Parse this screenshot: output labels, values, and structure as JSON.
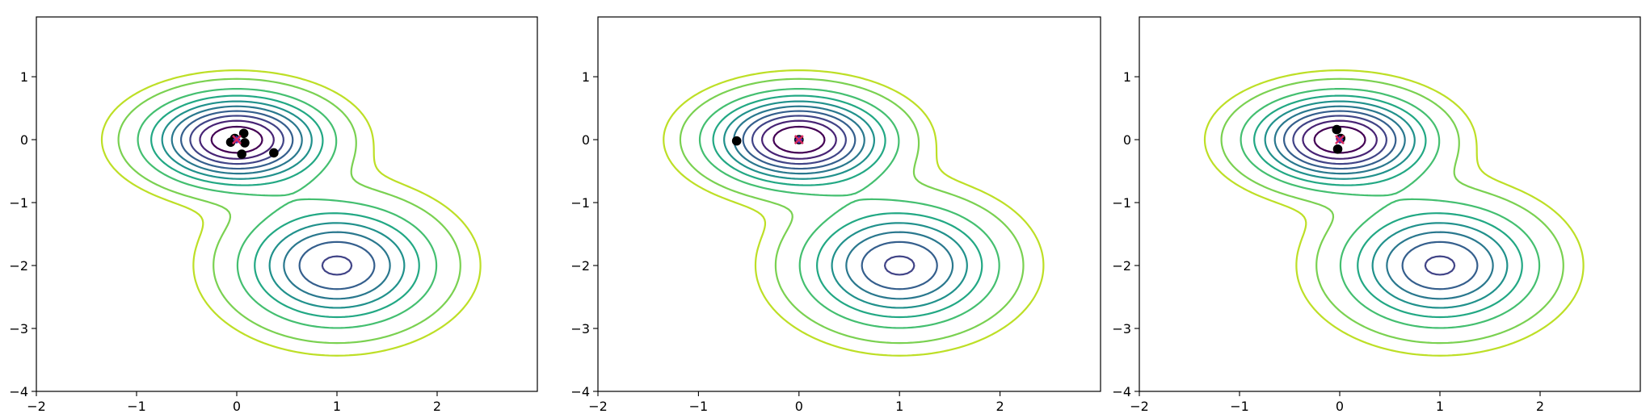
{
  "chart_data": [
    {
      "type": "contour",
      "title": "",
      "xlabel": "",
      "ylabel": "",
      "xlim": [
        -2,
        3
      ],
      "ylim": [
        -4,
        1.95
      ],
      "xticks": [
        -2,
        -1,
        0,
        1,
        2
      ],
      "yticks": [
        -4,
        -3,
        -2,
        -1,
        0,
        1
      ],
      "xtick_labels": [
        "−2",
        "−1",
        "0",
        "1",
        "2"
      ],
      "ytick_labels": [
        "−4",
        "−3",
        "−2",
        "−1",
        "0",
        "1"
      ],
      "grid": false,
      "contour_levels": [
        0.05,
        0.1,
        0.2,
        0.3,
        0.4,
        0.5,
        0.6,
        0.7,
        0.8,
        0.9
      ],
      "contour_colors": [
        "#bddf26",
        "#7ad151",
        "#44bf70",
        "#22a884",
        "#21918c",
        "#2a788e",
        "#355f8d",
        "#414487",
        "#482475",
        "#440154"
      ],
      "series": [
        {
          "marker": "samples",
          "color": "#000000",
          "x": [
            0.07,
            -0.06,
            0.08,
            0.05,
            0.37,
            -0.02
          ],
          "y": [
            0.1,
            -0.04,
            -0.05,
            -0.23,
            -0.21,
            0.02
          ]
        },
        {
          "marker": "mean",
          "color": "#d62a63",
          "x": [
            0.0
          ],
          "y": [
            0.0
          ]
        }
      ]
    },
    {
      "type": "contour",
      "title": "",
      "xlabel": "",
      "ylabel": "",
      "xlim": [
        -2,
        3
      ],
      "ylim": [
        -4,
        1.95
      ],
      "xticks": [
        -2,
        -1,
        0,
        1,
        2
      ],
      "yticks": [
        -4,
        -3,
        -2,
        -1,
        0,
        1
      ],
      "xtick_labels": [
        "−2",
        "−1",
        "0",
        "1",
        "2"
      ],
      "ytick_labels": [
        "−4",
        "−3",
        "−2",
        "−1",
        "0",
        "1"
      ],
      "grid": false,
      "contour_levels": [
        0.05,
        0.1,
        0.2,
        0.3,
        0.4,
        0.5,
        0.6,
        0.7,
        0.8,
        0.9
      ],
      "contour_colors": [
        "#bddf26",
        "#7ad151",
        "#44bf70",
        "#22a884",
        "#21918c",
        "#2a788e",
        "#355f8d",
        "#414487",
        "#482475",
        "#440154"
      ],
      "series": [
        {
          "marker": "samples",
          "color": "#000000",
          "x": [
            -0.62,
            0.0
          ],
          "y": [
            -0.02,
            0.0
          ]
        },
        {
          "marker": "mean",
          "color": "#d62a63",
          "x": [
            0.0
          ],
          "y": [
            0.0
          ]
        }
      ]
    },
    {
      "type": "contour",
      "title": "",
      "xlabel": "",
      "ylabel": "",
      "xlim": [
        -2,
        3
      ],
      "ylim": [
        -4,
        1.95
      ],
      "xticks": [
        -2,
        -1,
        0,
        1,
        2
      ],
      "yticks": [
        -4,
        -3,
        -2,
        -1,
        0,
        1
      ],
      "xtick_labels": [
        "−2",
        "−1",
        "0",
        "1",
        "2"
      ],
      "ytick_labels": [
        "−4",
        "−3",
        "−2",
        "−1",
        "0",
        "1"
      ],
      "grid": false,
      "contour_levels": [
        0.05,
        0.1,
        0.2,
        0.3,
        0.4,
        0.5,
        0.6,
        0.7,
        0.8,
        0.9
      ],
      "contour_colors": [
        "#bddf26",
        "#7ad151",
        "#44bf70",
        "#22a884",
        "#21918c",
        "#2a788e",
        "#355f8d",
        "#414487",
        "#482475",
        "#440154"
      ],
      "series": [
        {
          "marker": "samples",
          "color": "#000000",
          "x": [
            -0.03,
            -0.02,
            0.01
          ],
          "y": [
            0.16,
            -0.15,
            0.02
          ]
        },
        {
          "marker": "mean",
          "color": "#d62a63",
          "x": [
            0.0
          ],
          "y": [
            0.0
          ]
        }
      ]
    }
  ]
}
